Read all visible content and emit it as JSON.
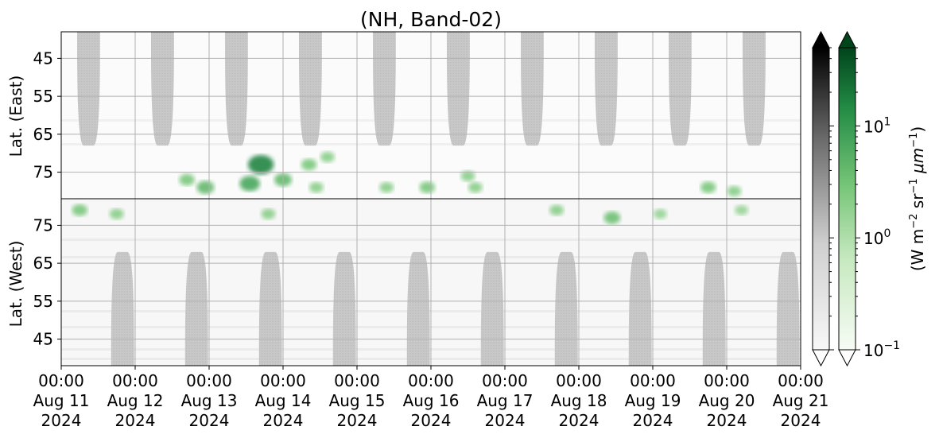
{
  "chart_data": {
    "type": "heatmap",
    "title": "(NH, Band-02)",
    "top_panel": {
      "ylabel": "Lat. (East)",
      "yticks": [
        "45",
        "55",
        "65",
        "75"
      ],
      "ylim": [
        38,
        82
      ],
      "y_inverted": true
    },
    "bottom_panel": {
      "ylabel": "Lat. (West)",
      "yticks": [
        "75",
        "65",
        "55",
        "45"
      ],
      "ylim": [
        82,
        38
      ]
    },
    "x_ticks": [
      {
        "time": "00:00",
        "day": "Aug 11",
        "year": "2024"
      },
      {
        "time": "00:00",
        "day": "Aug 12",
        "year": "2024"
      },
      {
        "time": "00:00",
        "day": "Aug 13",
        "year": "2024"
      },
      {
        "time": "00:00",
        "day": "Aug 14",
        "year": "2024"
      },
      {
        "time": "00:00",
        "day": "Aug 15",
        "year": "2024"
      },
      {
        "time": "00:00",
        "day": "Aug 16",
        "year": "2024"
      },
      {
        "time": "00:00",
        "day": "Aug 17",
        "year": "2024"
      },
      {
        "time": "00:00",
        "day": "Aug 18",
        "year": "2024"
      },
      {
        "time": "00:00",
        "day": "Aug 19",
        "year": "2024"
      },
      {
        "time": "00:00",
        "day": "Aug 20",
        "year": "2024"
      },
      {
        "time": "00:00",
        "day": "Aug 21",
        "year": "2024"
      }
    ],
    "xlim": [
      "2024-08-11 00:00",
      "2024-08-21 00:00"
    ],
    "grid": true,
    "colorbars": [
      {
        "cmap": "Greys",
        "extend": "both"
      },
      {
        "cmap": "Greens",
        "extend": "both",
        "scale": "log",
        "range": [
          0.1,
          50
        ],
        "ticks": [
          {
            "base": "10",
            "exp": "1"
          },
          {
            "base": "10",
            "exp": "0"
          },
          {
            "base": "10",
            "exp": "−1"
          }
        ],
        "label_main": "(W m",
        "label_e1": "−2",
        "label_mid": " sr",
        "label_e2": "−1",
        "label_mu": " μm",
        "label_e3": "−1",
        "label_end": ")"
      }
    ],
    "sunlit_blocks_gray": {
      "top_centers_day": [
        0.37,
        1.37,
        2.37,
        3.37,
        4.37,
        5.37,
        6.37,
        7.37,
        8.37,
        9.37
      ],
      "bottom_centers_day": [
        0.83,
        1.83,
        2.83,
        3.83,
        4.83,
        5.83,
        6.83,
        7.83,
        8.83,
        9.83
      ],
      "edge_lat": 68
    },
    "green_patches": [
      {
        "panel": "top",
        "day": 1.7,
        "lat": 77,
        "value": 2
      },
      {
        "panel": "top",
        "day": 1.95,
        "lat": 79,
        "value": 3
      },
      {
        "panel": "top",
        "day": 2.7,
        "lat": 73,
        "value": 12
      },
      {
        "panel": "top",
        "day": 2.55,
        "lat": 78,
        "value": 5
      },
      {
        "panel": "top",
        "day": 3.0,
        "lat": 77,
        "value": 3
      },
      {
        "panel": "top",
        "day": 3.35,
        "lat": 73,
        "value": 2
      },
      {
        "panel": "top",
        "day": 3.45,
        "lat": 79,
        "value": 1.5
      },
      {
        "panel": "top",
        "day": 3.6,
        "lat": 71,
        "value": 1.5
      },
      {
        "panel": "top",
        "day": 4.4,
        "lat": 79,
        "value": 1.5
      },
      {
        "panel": "top",
        "day": 4.95,
        "lat": 79,
        "value": 2
      },
      {
        "panel": "top",
        "day": 5.5,
        "lat": 76,
        "value": 1.5
      },
      {
        "panel": "top",
        "day": 5.6,
        "lat": 79,
        "value": 1.5
      },
      {
        "panel": "top",
        "day": 8.75,
        "lat": 79,
        "value": 2
      },
      {
        "panel": "top",
        "day": 9.1,
        "lat": 80,
        "value": 1.5
      },
      {
        "panel": "bottom",
        "day": 0.25,
        "lat": 79,
        "value": 2
      },
      {
        "panel": "bottom",
        "day": 0.75,
        "lat": 78,
        "value": 1.5
      },
      {
        "panel": "bottom",
        "day": 2.8,
        "lat": 78,
        "value": 1.5
      },
      {
        "panel": "bottom",
        "day": 6.7,
        "lat": 79,
        "value": 1.5
      },
      {
        "panel": "bottom",
        "day": 7.45,
        "lat": 77,
        "value": 2.5
      },
      {
        "panel": "bottom",
        "day": 8.1,
        "lat": 78,
        "value": 1.2
      },
      {
        "panel": "bottom",
        "day": 9.2,
        "lat": 79,
        "value": 1.2
      }
    ]
  }
}
